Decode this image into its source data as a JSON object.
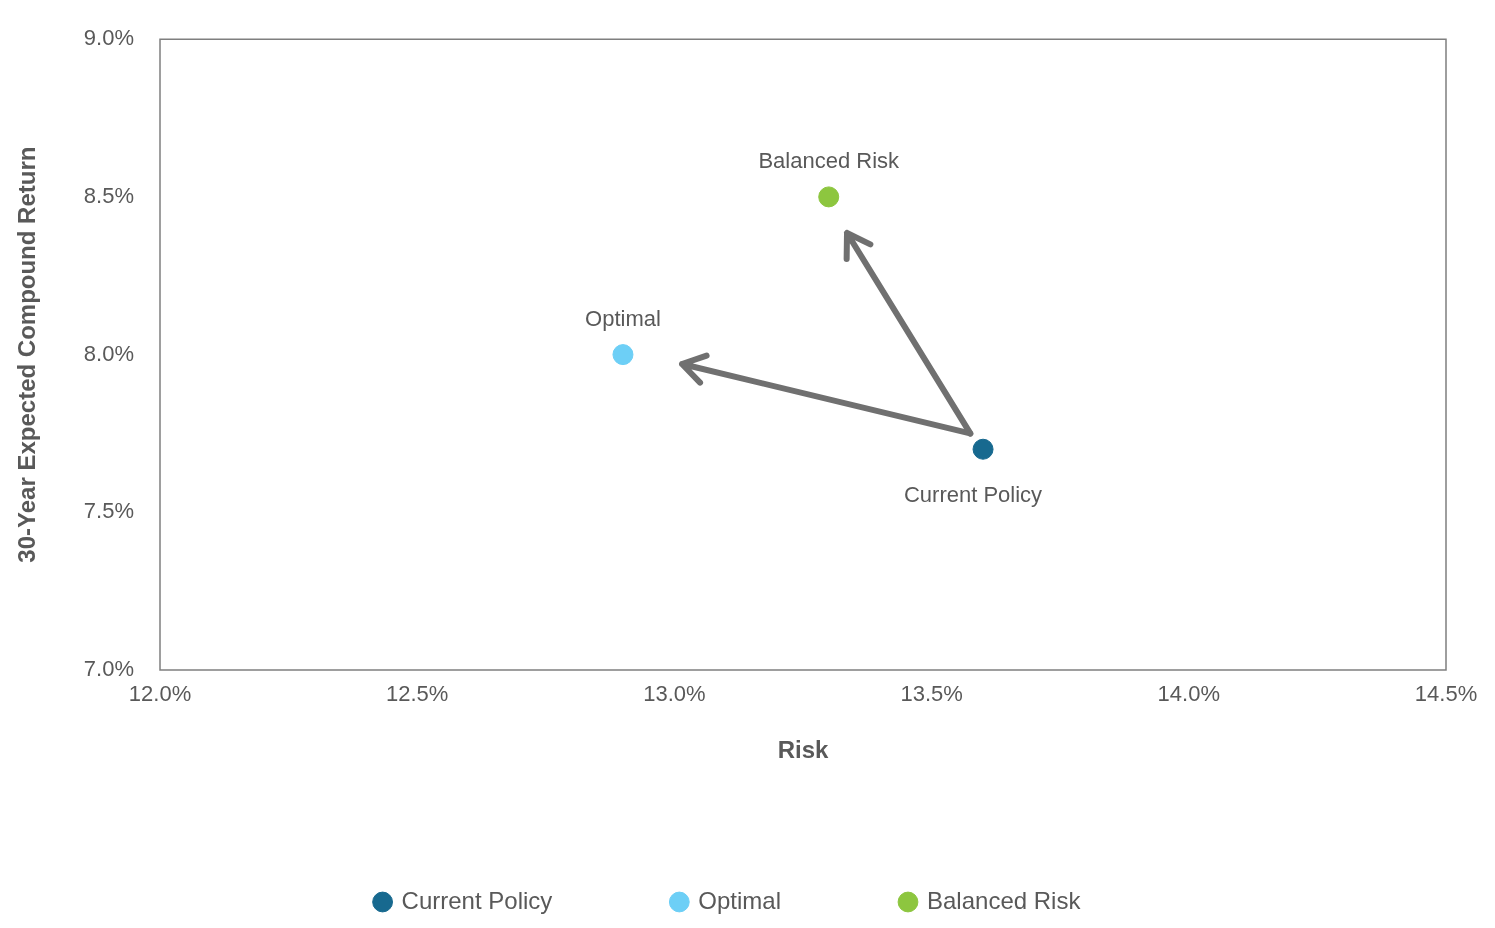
{
  "chart_data": {
    "type": "scatter",
    "xlabel": "Risk",
    "ylabel": "30-Year Expected Compound Return",
    "series": [
      {
        "name": "Current Policy",
        "color": "#17698f",
        "x": [
          13.6
        ],
        "values": [
          7.7
        ]
      },
      {
        "name": "Optimal",
        "color": "#6dcff6",
        "x": [
          12.9
        ],
        "values": [
          8.0
        ]
      },
      {
        "name": "Balanced Risk",
        "color": "#8dc63f",
        "x": [
          13.3
        ],
        "values": [
          8.5
        ]
      }
    ],
    "xlim": [
      12.0,
      14.5
    ],
    "xticks": [
      {
        "value": 12.0,
        "label": "12.0%"
      },
      {
        "value": 12.5,
        "label": "12.5%"
      },
      {
        "value": 13.0,
        "label": "13.0%"
      },
      {
        "value": 13.5,
        "label": "13.5%"
      },
      {
        "value": 14.0,
        "label": "14.0%"
      },
      {
        "value": 14.5,
        "label": "14.5%"
      }
    ],
    "ylim": [
      7.0,
      9.0
    ],
    "yticks": [
      {
        "value": 7.0,
        "label": "7.0%"
      },
      {
        "value": 7.5,
        "label": "7.5%"
      },
      {
        "value": 8.0,
        "label": "8.0%"
      },
      {
        "value": 8.5,
        "label": "8.5%"
      },
      {
        "value": 9.0,
        "label": "9.0%"
      }
    ],
    "grid": false,
    "legend": "bottom",
    "marker": "circle"
  }
}
